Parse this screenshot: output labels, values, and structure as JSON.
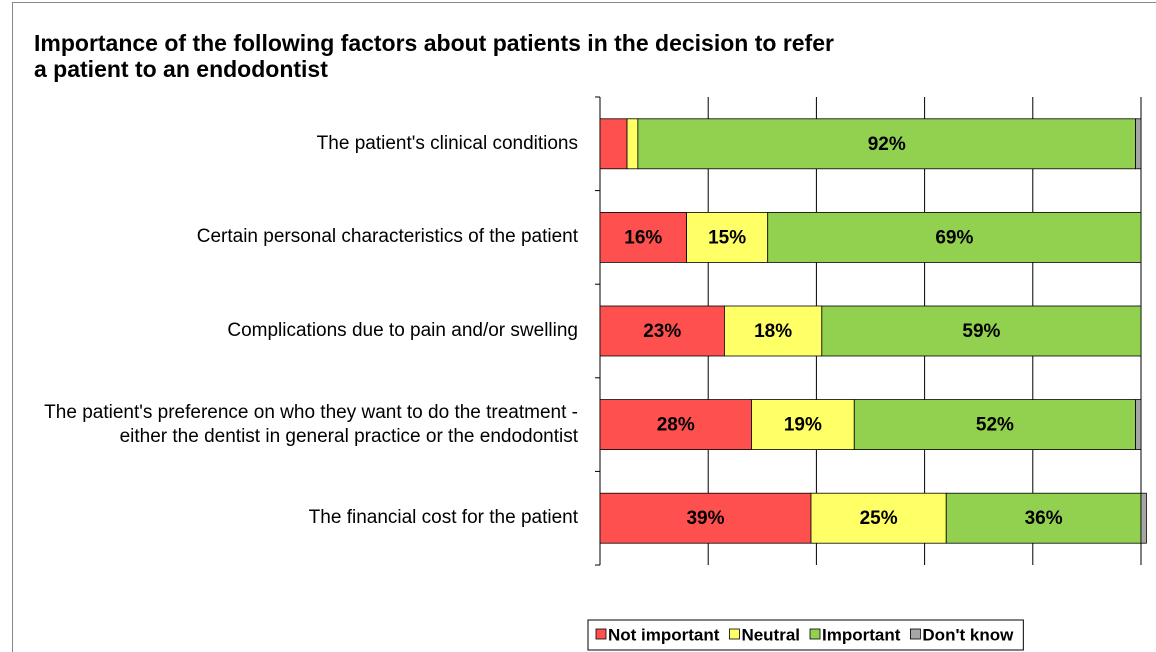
{
  "chart_data": {
    "type": "stacked-bar-horizontal",
    "title": "Importance of the following factors about patients in the decision to refer a patient to an endodontist",
    "categories": [
      "The patient's clinical conditions",
      "Certain personal characteristics of the patient",
      "Complications due to pain and/or swelling",
      "The patient's preference on who they want to do the treatment - either the dentist in general practice or the endodontist",
      "The financial cost for the patient"
    ],
    "series": [
      {
        "name": "Not important",
        "color": "#ff5050",
        "values": [
          5,
          16,
          23,
          28,
          39
        ],
        "value_labels": [
          null,
          "16%",
          "23%",
          "28%",
          "39%"
        ]
      },
      {
        "name": "Neutral",
        "color": "#ffff66",
        "values": [
          2,
          15,
          18,
          19,
          25
        ],
        "value_labels": [
          null,
          "15%",
          "18%",
          "19%",
          "25%"
        ]
      },
      {
        "name": "Important",
        "color": "#92d050",
        "values": [
          92,
          69,
          59,
          52,
          36
        ],
        "value_labels": [
          "92%",
          "69%",
          "59%",
          "52%",
          "36%"
        ]
      },
      {
        "name": "Don't know",
        "color": "#a6a6a6",
        "values": [
          1,
          0,
          0,
          1,
          1
        ],
        "value_labels": [
          null,
          null,
          null,
          null,
          null
        ]
      }
    ],
    "xlim": [
      0,
      100
    ],
    "xticks": [
      0,
      20,
      40,
      60,
      80,
      100
    ],
    "grid": true,
    "legend": "bottom"
  }
}
